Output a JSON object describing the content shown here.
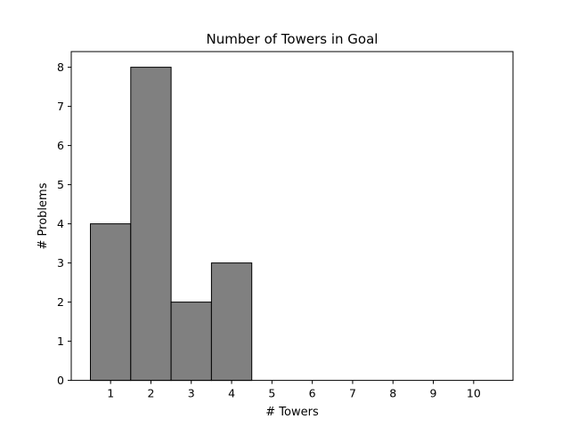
{
  "chart_data": {
    "type": "bar",
    "title": "Number of Towers in Goal",
    "xlabel": "# Towers",
    "ylabel": "# Problems",
    "categories": [
      "1",
      "2",
      "3",
      "4",
      "5",
      "6",
      "7",
      "8",
      "9",
      "10"
    ],
    "values": [
      4,
      8,
      2,
      3,
      0,
      0,
      0,
      0,
      0,
      0
    ],
    "x": [
      1,
      2,
      3,
      4,
      5,
      6,
      7,
      8,
      9,
      10
    ],
    "xlim": [
      0.025,
      10.975
    ],
    "ylim": [
      0,
      8.4
    ],
    "yticks": [
      0,
      1,
      2,
      3,
      4,
      5,
      6,
      7,
      8
    ],
    "grid": false,
    "colors": {
      "bar_fill": "#808080",
      "bar_edge": "#000000"
    }
  }
}
